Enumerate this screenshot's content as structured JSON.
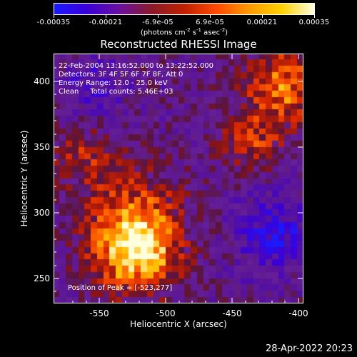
{
  "colorbar": {
    "ticks": [
      "-0.00035",
      "-0.00021",
      "-6.9e-05",
      "6.9e-05",
      "0.00021",
      "0.00035"
    ],
    "unit": {
      "base": "(photons cm",
      "e1": "-2",
      "mid1": " s",
      "e2": "-1",
      "mid2": " asec",
      "e3": "-2",
      "tail": ")"
    },
    "stops": [
      "#1a1aff",
      "#3a00d8",
      "#6a10a0",
      "#8a1a2a",
      "#c02000",
      "#ff4a00",
      "#ff9a00",
      "#ffd200",
      "#ffffe0"
    ]
  },
  "plot": {
    "title": "Reconstructed RHESSI Image",
    "info_lines": [
      "22-Feb-2004 13:16:52.000 to 13:22:52.000",
      "Detectors: 3F 4F 5F 6F 7F 8F, Att 0",
      "Energy Range: 12.0 - 25.0 keV",
      "Clean     Total counts: 5.46E+03"
    ],
    "peak_text": "Position of Peak = [-523,277]",
    "xlabel": "Heliocentric X (arcsec)",
    "ylabel": "Heliocentric Y (arcsec)",
    "x_ticks": [
      "-550",
      "-500",
      "-450",
      "-400"
    ],
    "y_ticks": [
      "400",
      "350",
      "300",
      "250"
    ],
    "xlim": [
      -580,
      -390
    ],
    "ylim": [
      230,
      420
    ]
  },
  "footer": {
    "timestamp": "28-Apr-2022 20:23"
  }
}
